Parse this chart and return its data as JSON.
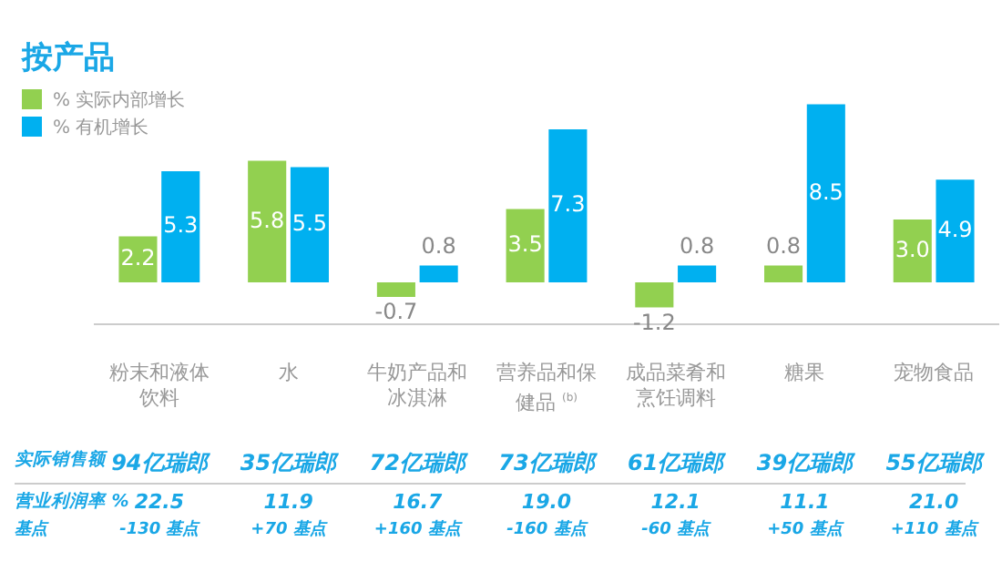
{
  "chart_data": {
    "type": "bar",
    "title": "按产品",
    "categories": [
      "粉末和液体饮料",
      "水",
      "牛奶产品和冰淇淋",
      "营养品和保健品 $^{(b)}$",
      "成品菜肴和烹饪调料",
      "糖果",
      "宠物食品"
    ],
    "series": [
      {
        "name": "% 实际内部增长",
        "color": "#92d050",
        "values": [
          2.2,
          5.8,
          -0.7,
          3.5,
          -1.2,
          0.8,
          3.0
        ],
        "value_labels": [
          "2.2",
          "5.8",
          "-0.7",
          "3.5",
          "-1.2",
          "0.8",
          "3.0"
        ]
      },
      {
        "name": "% 有机增长",
        "color": "#00b0f0",
        "values": [
          5.3,
          5.5,
          0.8,
          7.3,
          0.8,
          8.5,
          4.9
        ],
        "value_labels": [
          "5.3",
          "5.5",
          "0.8",
          "7.3",
          "0.8",
          "8.5",
          "4.9"
        ]
      }
    ],
    "legend": "top left",
    "grid": false,
    "annotations": [
      "实际销售额",
      "94亿瑞郎",
      "35亿瑞郎",
      "72亿瑞郎",
      "73亿瑞郎",
      "61亿瑞郎",
      "39亿瑞郎",
      "55亿瑞郎",
      "营业利润率 %",
      "22.5",
      "11.9",
      "16.7",
      "19.0",
      "12.1",
      "11.1",
      "21.0",
      "基点",
      "-130 基点",
      "+70 基点",
      "+160 基点",
      "-160 基点",
      "-60 基点",
      "+50 基点",
      "+110 基点"
    ]
  }
}
